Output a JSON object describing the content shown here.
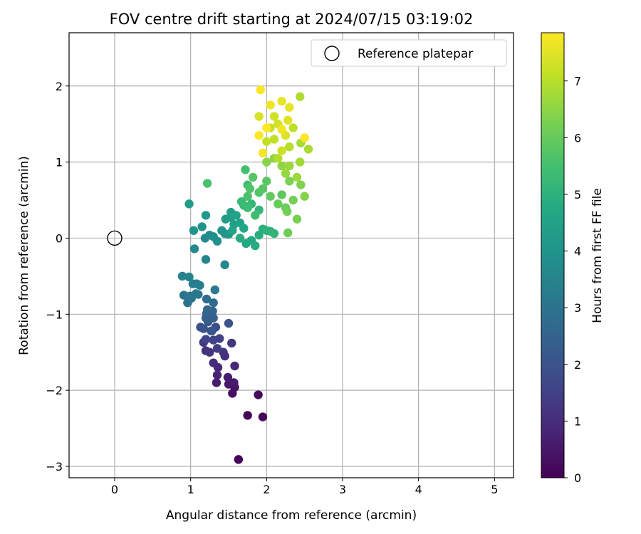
{
  "chart_data": {
    "type": "scatter",
    "title": "FOV centre drift starting at 2024/07/15 03:19:02",
    "xlabel": "Angular distance from reference (arcmin)",
    "ylabel": "Rotation from reference (arcmin)",
    "xlim": [
      -0.6,
      5.25
    ],
    "ylim": [
      -3.15,
      2.7
    ],
    "xticks": [
      0,
      1,
      2,
      3,
      4,
      5
    ],
    "yticks": [
      -3,
      -2,
      -1,
      0,
      1,
      2
    ],
    "grid": true,
    "legend": {
      "position": "top-right",
      "entries": [
        "Reference platepar"
      ]
    },
    "reference_point": {
      "x": 0,
      "y": 0
    },
    "colorbar": {
      "label": "Hours from first FF file",
      "colormap": "viridis",
      "range": [
        0,
        7.85
      ],
      "ticks": [
        0,
        1,
        2,
        3,
        4,
        5,
        6,
        7
      ]
    },
    "series": [
      {
        "points": [
          [
            1.63,
            -2.91,
            0.05
          ],
          [
            1.75,
            -2.33,
            0.1
          ],
          [
            1.95,
            -2.35,
            0.12
          ],
          [
            1.89,
            -2.06,
            0.2
          ],
          [
            1.55,
            -2.04,
            0.3
          ],
          [
            1.58,
            -1.96,
            0.4
          ],
          [
            1.5,
            -1.92,
            0.5
          ],
          [
            1.57,
            -1.9,
            0.55
          ],
          [
            1.34,
            -1.9,
            0.6
          ],
          [
            1.49,
            -1.83,
            0.65
          ],
          [
            1.35,
            -1.8,
            0.75
          ],
          [
            1.58,
            -1.68,
            0.85
          ],
          [
            1.36,
            -1.7,
            0.9
          ],
          [
            1.3,
            -1.64,
            1.0
          ],
          [
            1.45,
            -1.55,
            1.05
          ],
          [
            1.2,
            -1.48,
            1.1
          ],
          [
            1.43,
            -1.5,
            1.15
          ],
          [
            1.25,
            -1.5,
            1.2
          ],
          [
            1.54,
            -1.38,
            1.25
          ],
          [
            1.17,
            -1.37,
            1.3
          ],
          [
            1.35,
            -1.45,
            1.4
          ],
          [
            1.38,
            -1.32,
            1.5
          ],
          [
            1.3,
            -1.34,
            1.55
          ],
          [
            1.2,
            -1.33,
            1.6
          ],
          [
            1.27,
            -1.22,
            1.7
          ],
          [
            1.33,
            -1.17,
            1.8
          ],
          [
            1.13,
            -1.17,
            1.9
          ],
          [
            1.17,
            -1.19,
            2.0
          ],
          [
            1.5,
            -1.12,
            2.05
          ],
          [
            1.28,
            -1.22,
            2.1
          ],
          [
            1.23,
            -1.1,
            2.2
          ],
          [
            1.21,
            -0.99,
            2.3
          ],
          [
            1.3,
            -1.05,
            2.35
          ],
          [
            1.2,
            -1.05,
            2.4
          ],
          [
            1.29,
            -0.96,
            2.5
          ],
          [
            1.22,
            -0.94,
            2.6
          ],
          [
            1.3,
            -0.85,
            2.7
          ],
          [
            1.21,
            -0.8,
            2.8
          ],
          [
            0.96,
            -0.85,
            2.85
          ],
          [
            0.91,
            -0.75,
            2.9
          ],
          [
            1.1,
            -0.74,
            3.0
          ],
          [
            1.01,
            -0.79,
            3.05
          ],
          [
            0.99,
            -0.76,
            3.1
          ],
          [
            1.07,
            -0.73,
            3.15
          ],
          [
            1.32,
            -0.68,
            3.2
          ],
          [
            1.08,
            -0.6,
            3.3
          ],
          [
            1.12,
            -0.62,
            3.35
          ],
          [
            1.03,
            -0.6,
            3.4
          ],
          [
            0.89,
            -0.5,
            3.45
          ],
          [
            0.98,
            -0.51,
            3.5
          ],
          [
            1.2,
            -0.28,
            3.55
          ],
          [
            1.45,
            -0.35,
            3.6
          ],
          [
            1.05,
            -0.14,
            3.65
          ],
          [
            1.19,
            0.0,
            3.7
          ],
          [
            1.25,
            0.04,
            3.8
          ],
          [
            1.3,
            0.02,
            3.85
          ],
          [
            1.35,
            -0.04,
            3.9
          ],
          [
            1.15,
            0.15,
            3.95
          ],
          [
            1.04,
            0.1,
            4.0
          ],
          [
            1.41,
            0.1,
            4.05
          ],
          [
            1.45,
            0.06,
            4.1
          ],
          [
            1.5,
            0.05,
            4.15
          ],
          [
            1.2,
            0.3,
            4.2
          ],
          [
            0.98,
            0.45,
            4.25
          ],
          [
            1.46,
            0.25,
            4.3
          ],
          [
            1.53,
            0.27,
            4.35
          ],
          [
            1.57,
            0.18,
            4.4
          ],
          [
            1.53,
            0.34,
            4.45
          ],
          [
            1.6,
            0.3,
            4.5
          ],
          [
            1.65,
            0.2,
            4.55
          ],
          [
            1.55,
            0.1,
            4.6
          ],
          [
            1.7,
            0.13,
            4.65
          ],
          [
            1.73,
            -0.07,
            4.7
          ],
          [
            1.8,
            -0.03,
            4.75
          ],
          [
            1.85,
            -0.1,
            4.8
          ],
          [
            1.65,
            0.0,
            4.85
          ],
          [
            1.9,
            0.04,
            4.9
          ],
          [
            1.95,
            0.12,
            4.95
          ],
          [
            2.0,
            0.1,
            5.0
          ],
          [
            2.05,
            0.09,
            5.05
          ],
          [
            2.1,
            0.06,
            5.1
          ],
          [
            1.9,
            0.37,
            5.15
          ],
          [
            1.8,
            0.45,
            5.2
          ],
          [
            1.7,
            0.43,
            5.25
          ],
          [
            1.67,
            0.48,
            5.3
          ],
          [
            1.75,
            0.4,
            5.35
          ],
          [
            1.85,
            0.3,
            5.4
          ],
          [
            1.75,
            0.7,
            5.45
          ],
          [
            1.72,
            0.9,
            5.5
          ],
          [
            1.22,
            0.72,
            5.55
          ],
          [
            1.75,
            0.55,
            5.6
          ],
          [
            1.78,
            0.65,
            5.65
          ],
          [
            1.9,
            0.6,
            5.7
          ],
          [
            1.82,
            0.8,
            5.75
          ],
          [
            1.95,
            0.65,
            5.8
          ],
          [
            2.0,
            0.75,
            5.85
          ],
          [
            2.2,
            0.57,
            5.9
          ],
          [
            2.05,
            0.55,
            5.95
          ],
          [
            2.15,
            0.45,
            6.0
          ],
          [
            2.25,
            0.4,
            6.05
          ],
          [
            2.28,
            0.07,
            6.1
          ],
          [
            2.27,
            0.35,
            6.15
          ],
          [
            2.35,
            0.5,
            6.2
          ],
          [
            2.4,
            0.25,
            6.25
          ],
          [
            2.3,
            0.75,
            6.3
          ],
          [
            2.45,
            0.7,
            6.35
          ],
          [
            2.5,
            0.55,
            6.4
          ],
          [
            2.0,
            1.0,
            6.45
          ],
          [
            2.1,
            1.05,
            6.5
          ],
          [
            2.2,
            0.95,
            6.55
          ],
          [
            2.25,
            0.85,
            6.6
          ],
          [
            2.3,
            0.95,
            6.65
          ],
          [
            2.4,
            0.8,
            6.7
          ],
          [
            2.44,
            1.0,
            6.75
          ],
          [
            2.45,
            1.25,
            6.8
          ],
          [
            2.55,
            1.17,
            6.85
          ],
          [
            2.44,
            1.86,
            6.9
          ],
          [
            2.15,
            1.05,
            6.95
          ],
          [
            2.3,
            1.2,
            7.0
          ],
          [
            2.35,
            1.45,
            7.05
          ],
          [
            2.1,
            1.3,
            7.1
          ],
          [
            2.0,
            1.27,
            7.15
          ],
          [
            2.05,
            1.45,
            7.2
          ],
          [
            2.2,
            1.15,
            7.25
          ],
          [
            2.1,
            1.6,
            7.3
          ],
          [
            2.15,
            1.5,
            7.35
          ],
          [
            1.9,
            1.6,
            7.4
          ],
          [
            2.25,
            1.35,
            7.45
          ],
          [
            2.28,
            1.55,
            7.5
          ],
          [
            2.3,
            1.72,
            7.55
          ],
          [
            2.2,
            1.8,
            7.6
          ],
          [
            2.05,
            1.75,
            7.65
          ],
          [
            2.2,
            1.43,
            7.7
          ],
          [
            1.95,
            1.12,
            7.75
          ],
          [
            1.92,
            1.95,
            7.8
          ],
          [
            1.9,
            1.35,
            7.82
          ],
          [
            2.5,
            1.32,
            7.84
          ],
          [
            2.0,
            1.45,
            7.85
          ]
        ]
      }
    ]
  }
}
